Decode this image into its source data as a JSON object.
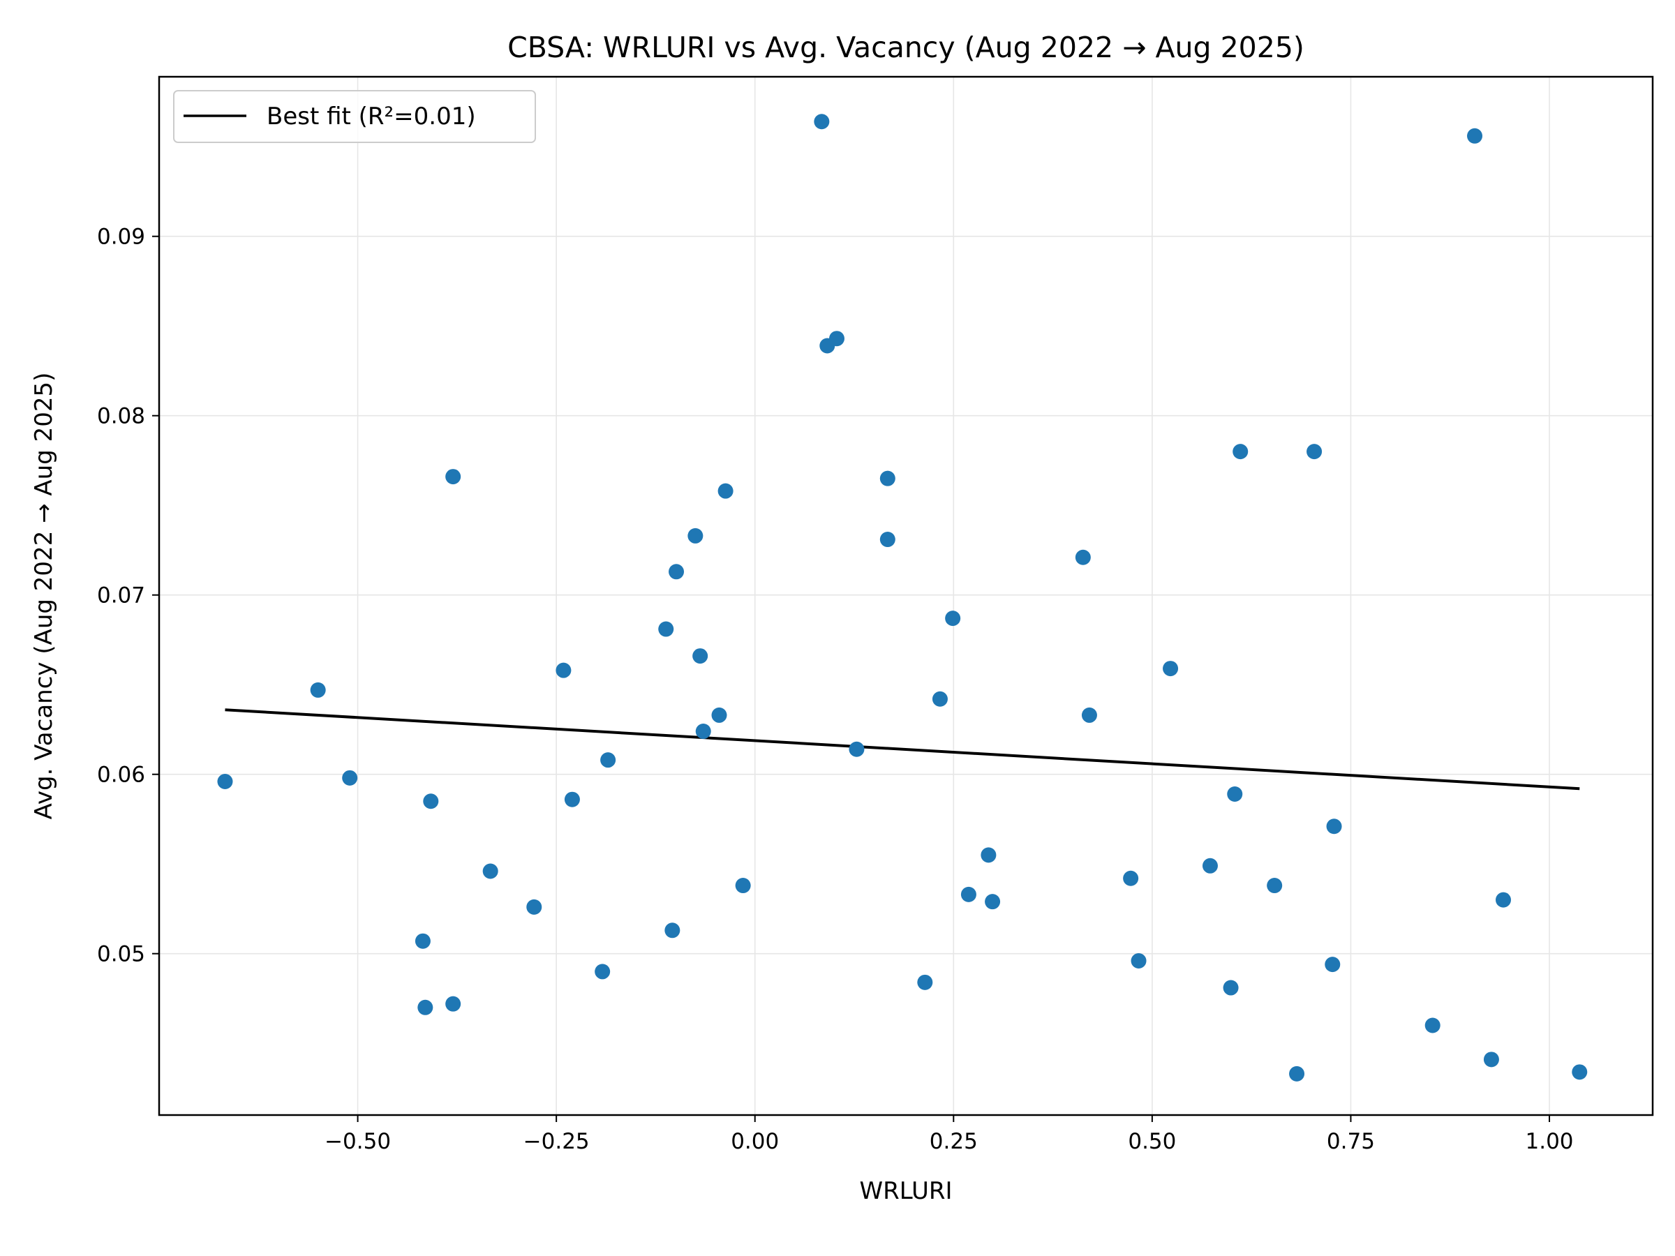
{
  "chart_data": {
    "type": "scatter",
    "title": "CBSA: WRLURI vs Avg. Vacancy (Aug 2022 → Aug 2025)",
    "xlabel": "WRLURI",
    "ylabel": "Avg. Vacancy (Aug 2022 → Aug 2025)",
    "xlim": [
      -0.75,
      1.13
    ],
    "ylim": [
      0.041,
      0.0989
    ],
    "xticks": [
      -0.5,
      -0.25,
      0.0,
      0.25,
      0.5,
      0.75,
      1.0
    ],
    "xtick_labels": [
      "−0.50",
      "−0.25",
      "0.00",
      "0.25",
      "0.50",
      "0.75",
      "1.00"
    ],
    "yticks": [
      0.05,
      0.06,
      0.07,
      0.08,
      0.09
    ],
    "ytick_labels": [
      "0.05",
      "0.06",
      "0.07",
      "0.08",
      "0.09"
    ],
    "grid": true,
    "legend_position": "upper-left",
    "point_color": "#1f77b4",
    "fit_color": "#000000",
    "fit_line": {
      "label": "Best fit (R²=0.01)",
      "x": [
        -0.667,
        1.038
      ],
      "y": [
        0.0636,
        0.0592
      ]
    },
    "points": [
      {
        "x": -0.667,
        "y": 0.0596
      },
      {
        "x": -0.55,
        "y": 0.0647
      },
      {
        "x": -0.51,
        "y": 0.0598
      },
      {
        "x": -0.418,
        "y": 0.0507
      },
      {
        "x": -0.415,
        "y": 0.047
      },
      {
        "x": -0.408,
        "y": 0.0585
      },
      {
        "x": -0.38,
        "y": 0.0766
      },
      {
        "x": -0.38,
        "y": 0.0472
      },
      {
        "x": -0.333,
        "y": 0.0546
      },
      {
        "x": -0.278,
        "y": 0.0526
      },
      {
        "x": -0.241,
        "y": 0.0658
      },
      {
        "x": -0.23,
        "y": 0.0586
      },
      {
        "x": -0.192,
        "y": 0.049
      },
      {
        "x": -0.185,
        "y": 0.0608
      },
      {
        "x": -0.112,
        "y": 0.0681
      },
      {
        "x": -0.104,
        "y": 0.0513
      },
      {
        "x": -0.099,
        "y": 0.0713
      },
      {
        "x": -0.075,
        "y": 0.0733
      },
      {
        "x": -0.069,
        "y": 0.0666
      },
      {
        "x": -0.065,
        "y": 0.0624
      },
      {
        "x": -0.045,
        "y": 0.0633
      },
      {
        "x": -0.037,
        "y": 0.0758
      },
      {
        "x": -0.015,
        "y": 0.0538
      },
      {
        "x": 0.084,
        "y": 0.0964
      },
      {
        "x": 0.091,
        "y": 0.0839
      },
      {
        "x": 0.103,
        "y": 0.0843
      },
      {
        "x": 0.128,
        "y": 0.0614
      },
      {
        "x": 0.167,
        "y": 0.0765
      },
      {
        "x": 0.167,
        "y": 0.0731
      },
      {
        "x": 0.214,
        "y": 0.0484
      },
      {
        "x": 0.233,
        "y": 0.0642
      },
      {
        "x": 0.249,
        "y": 0.0687
      },
      {
        "x": 0.269,
        "y": 0.0533
      },
      {
        "x": 0.294,
        "y": 0.0555
      },
      {
        "x": 0.299,
        "y": 0.0529
      },
      {
        "x": 0.413,
        "y": 0.0721
      },
      {
        "x": 0.421,
        "y": 0.0633
      },
      {
        "x": 0.473,
        "y": 0.0542
      },
      {
        "x": 0.483,
        "y": 0.0496
      },
      {
        "x": 0.523,
        "y": 0.0659
      },
      {
        "x": 0.573,
        "y": 0.0549
      },
      {
        "x": 0.599,
        "y": 0.0481
      },
      {
        "x": 0.604,
        "y": 0.0589
      },
      {
        "x": 0.611,
        "y": 0.078
      },
      {
        "x": 0.654,
        "y": 0.0538
      },
      {
        "x": 0.682,
        "y": 0.0433
      },
      {
        "x": 0.704,
        "y": 0.078
      },
      {
        "x": 0.727,
        "y": 0.0494
      },
      {
        "x": 0.729,
        "y": 0.0571
      },
      {
        "x": 0.853,
        "y": 0.046
      },
      {
        "x": 0.906,
        "y": 0.0956
      },
      {
        "x": 0.927,
        "y": 0.0441
      },
      {
        "x": 0.942,
        "y": 0.053
      },
      {
        "x": 1.038,
        "y": 0.0434
      }
    ]
  }
}
